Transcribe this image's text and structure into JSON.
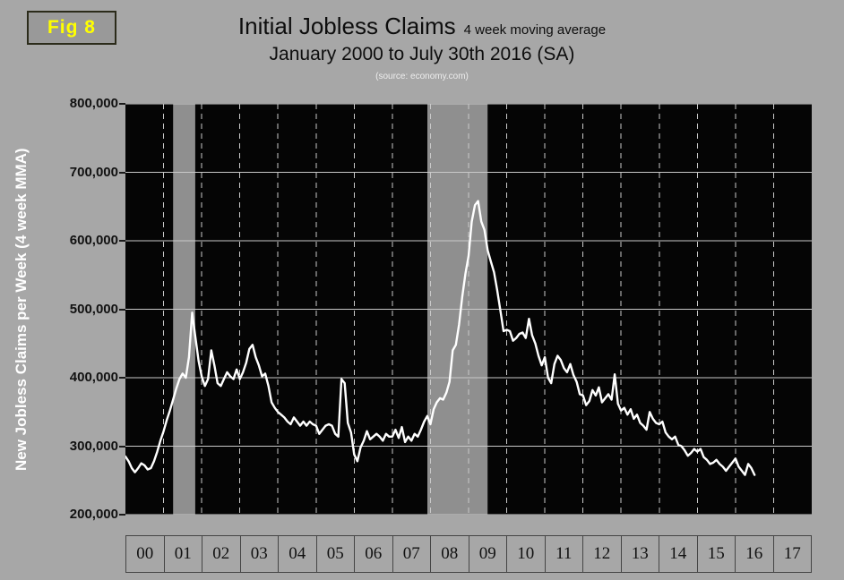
{
  "fig_label": "Fig 8",
  "title": {
    "main": "Initial Jobless Claims",
    "suffix": "4 week moving average",
    "subtitle": "January 2000 to July 30th 2016 (SA)",
    "source": "(source: economy.com)"
  },
  "colors": {
    "page_bg": "#a7a7a7",
    "plot_bg": "#050505",
    "grid": "#c9c9c9",
    "band": "#8f8f8f",
    "line": "#ffffff",
    "fig_label": "#ffff00",
    "title_text": "#0d0d0d",
    "axis_text": "#111111",
    "ylabel_text": "#ffffff",
    "source_text": "#ededed"
  },
  "chart_data": {
    "type": "line",
    "title": "Initial Jobless Claims 4 week moving average",
    "subtitle": "January 2000 to July 30th 2016 (SA)",
    "source": "(source: economy.com)",
    "ylabel": "New Jobless Claims per Week (4 week MMA)",
    "ylim": [
      200000,
      800000
    ],
    "yticks": [
      800000,
      700000,
      600000,
      500000,
      400000,
      300000,
      200000
    ],
    "ytick_labels": [
      "800,000",
      "700,000",
      "600,000",
      "500,000",
      "400,000",
      "300,000",
      "200,000"
    ],
    "x_start_year": 2000,
    "x_end_year": 2018,
    "x_categories": [
      "00",
      "01",
      "02",
      "03",
      "04",
      "05",
      "06",
      "07",
      "08",
      "09",
      "10",
      "11",
      "12",
      "13",
      "14",
      "15",
      "16",
      "17"
    ],
    "grid": {
      "horizontal": "solid",
      "vertical": "dashed"
    },
    "legend": "none",
    "recession_bands": [
      {
        "start": 2001.25,
        "end": 2001.83
      },
      {
        "start": 2007.92,
        "end": 2009.5
      }
    ],
    "series": [
      {
        "name": "Initial jobless claims, 4-week moving average (SA)",
        "start_year": 2000,
        "points_per_year": 12,
        "units": "claims per week",
        "values": [
          285000,
          278000,
          268000,
          262000,
          268000,
          275000,
          272000,
          266000,
          268000,
          278000,
          292000,
          308000,
          322000,
          338000,
          352000,
          368000,
          384000,
          398000,
          406000,
          400000,
          430000,
          495000,
          460000,
          425000,
          402000,
          388000,
          398000,
          440000,
          418000,
          392000,
          388000,
          398000,
          408000,
          402000,
          398000,
          412000,
          398000,
          408000,
          422000,
          442000,
          448000,
          430000,
          418000,
          402000,
          406000,
          388000,
          364000,
          356000,
          350000,
          346000,
          342000,
          336000,
          332000,
          342000,
          336000,
          330000,
          336000,
          330000,
          336000,
          332000,
          330000,
          318000,
          324000,
          330000,
          332000,
          330000,
          318000,
          314000,
          398000,
          392000,
          334000,
          320000,
          288000,
          278000,
          298000,
          308000,
          322000,
          310000,
          314000,
          318000,
          314000,
          308000,
          318000,
          314000,
          314000,
          324000,
          312000,
          328000,
          306000,
          314000,
          308000,
          318000,
          314000,
          324000,
          336000,
          344000,
          332000,
          354000,
          364000,
          370000,
          368000,
          378000,
          394000,
          440000,
          448000,
          478000,
          518000,
          552000,
          578000,
          628000,
          652000,
          658000,
          628000,
          616000,
          586000,
          570000,
          554000,
          528000,
          498000,
          468000,
          470000,
          468000,
          454000,
          458000,
          464000,
          466000,
          458000,
          486000,
          462000,
          450000,
          432000,
          418000,
          430000,
          400000,
          392000,
          420000,
          432000,
          426000,
          414000,
          408000,
          420000,
          404000,
          394000,
          376000,
          374000,
          360000,
          366000,
          382000,
          374000,
          386000,
          364000,
          370000,
          376000,
          368000,
          405000,
          362000,
          352000,
          356000,
          346000,
          354000,
          340000,
          346000,
          334000,
          330000,
          324000,
          350000,
          340000,
          334000,
          332000,
          336000,
          320000,
          314000,
          310000,
          314000,
          302000,
          300000,
          294000,
          286000,
          290000,
          296000,
          292000,
          296000,
          284000,
          280000,
          274000,
          276000,
          280000,
          274000,
          270000,
          264000,
          270000,
          276000,
          282000,
          270000,
          264000,
          258000,
          274000,
          268000,
          258000
        ]
      }
    ]
  }
}
